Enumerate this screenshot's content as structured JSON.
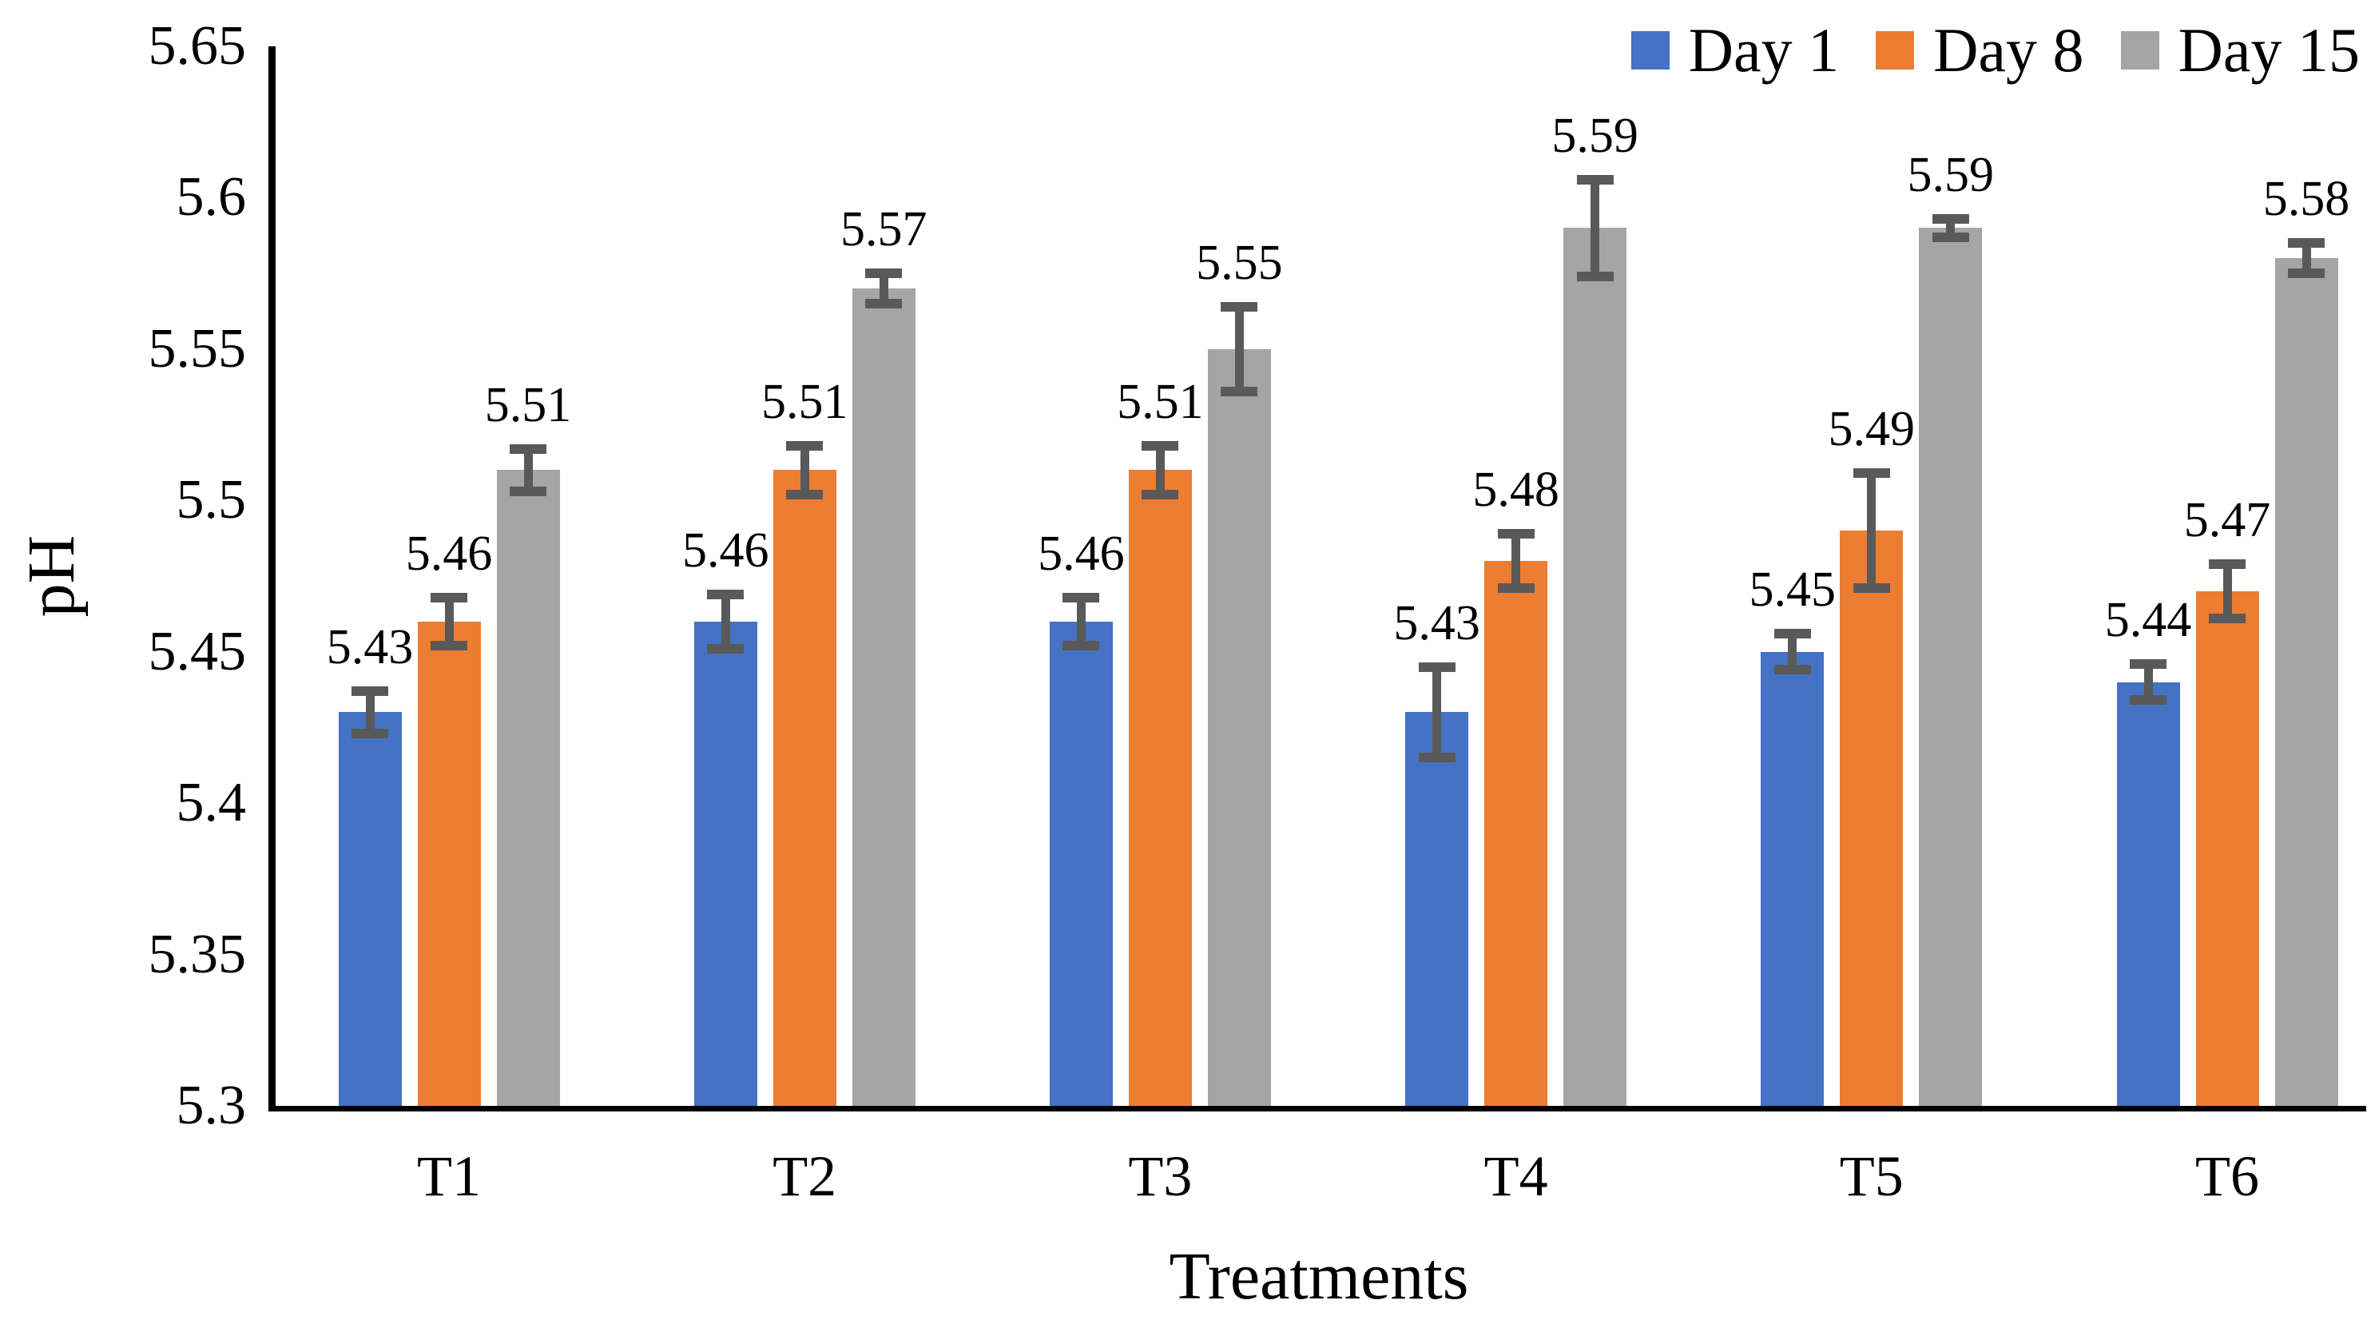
{
  "chart_data": {
    "type": "bar",
    "title": "",
    "xlabel": "Treatments",
    "ylabel": "pH",
    "categories": [
      "T1",
      "T2",
      "T3",
      "T4",
      "T5",
      "T6"
    ],
    "series": [
      {
        "name": "Day 1",
        "color": "#4472C4",
        "values": [
          5.43,
          5.46,
          5.46,
          5.43,
          5.45,
          5.44
        ],
        "errors": [
          0.007,
          0.009,
          0.008,
          0.015,
          0.006,
          0.006
        ]
      },
      {
        "name": "Day 8",
        "color": "#ED7D31",
        "values": [
          5.46,
          5.51,
          5.51,
          5.48,
          5.49,
          5.47
        ],
        "errors": [
          0.008,
          0.008,
          0.008,
          0.009,
          0.019,
          0.009
        ]
      },
      {
        "name": "Day 15",
        "color": "#A5A5A5",
        "values": [
          5.51,
          5.57,
          5.55,
          5.59,
          5.59,
          5.58
        ],
        "errors": [
          0.007,
          0.005,
          0.014,
          0.016,
          0.003,
          0.005
        ]
      }
    ],
    "data_label_decimals": 2,
    "ylim": [
      5.3,
      5.65
    ],
    "yticks": [
      "5.65",
      "5.6",
      "5.55",
      "5.5",
      "5.45",
      "5.4",
      "5.35",
      "5.3"
    ],
    "grid": false,
    "legend_position": "top-right",
    "error_bar_color": "#595959",
    "axis_color": "#000000"
  }
}
